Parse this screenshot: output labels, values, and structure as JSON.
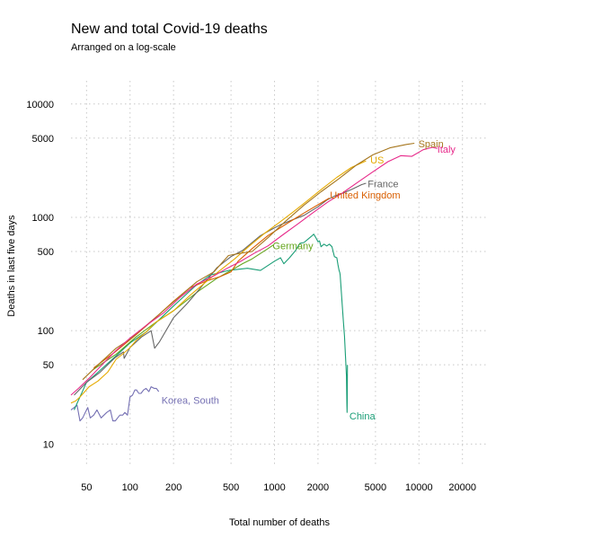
{
  "chart_data": {
    "type": "line",
    "title": "New and total Covid-19 deaths",
    "subtitle": "Arranged on a log-scale",
    "xlabel": "Total number of deaths",
    "ylabel": "Deaths in last five days",
    "x_scale": "log10",
    "y_scale": "log10",
    "xlim": [
      39,
      30000
    ],
    "ylim": [
      6.5,
      16000
    ],
    "x_ticks": [
      50,
      100,
      200,
      500,
      1000,
      2000,
      5000,
      10000,
      20000
    ],
    "x_tick_labels": [
      "50",
      "100",
      "200",
      "500",
      "1000",
      "2000",
      "5000",
      "10000",
      "20000"
    ],
    "y_ticks": [
      10,
      50,
      100,
      500,
      1000,
      5000,
      10000
    ],
    "y_tick_labels": [
      "10",
      "50",
      "100",
      "500",
      "1000",
      "5000",
      "10000"
    ],
    "grid": true,
    "legend": "none",
    "series": [
      {
        "name": "Korea, South",
        "color": "#7570b3",
        "label_at": [
          165,
          24.5
        ],
        "points": [
          [
            39,
            20
          ],
          [
            43,
            22
          ],
          [
            45,
            16
          ],
          [
            47,
            17
          ],
          [
            49,
            19
          ],
          [
            51,
            21
          ],
          [
            53,
            17
          ],
          [
            56,
            18
          ],
          [
            59,
            20
          ],
          [
            63,
            17
          ],
          [
            66,
            18
          ],
          [
            69,
            19
          ],
          [
            73,
            20
          ],
          [
            76,
            16
          ],
          [
            79,
            16
          ],
          [
            82,
            17
          ],
          [
            85,
            18
          ],
          [
            89,
            18
          ],
          [
            92,
            19
          ],
          [
            96,
            18
          ],
          [
            100,
            26
          ],
          [
            104,
            27
          ],
          [
            108,
            30
          ],
          [
            111,
            30
          ],
          [
            115,
            28
          ],
          [
            119,
            28
          ],
          [
            124,
            30
          ],
          [
            129,
            31
          ],
          [
            135,
            29
          ],
          [
            140,
            32
          ],
          [
            147,
            31
          ],
          [
            152,
            31
          ],
          [
            158,
            29
          ]
        ]
      },
      {
        "name": "China",
        "color": "#1b9e77",
        "label_at": [
          3300,
          17.7
        ],
        "points": [
          [
            41,
            20
          ],
          [
            50,
            35
          ],
          [
            60,
            43
          ],
          [
            80,
            60
          ],
          [
            100,
            78
          ],
          [
            130,
            98
          ],
          [
            200,
            165
          ],
          [
            280,
            245
          ],
          [
            360,
            310
          ],
          [
            480,
            340
          ],
          [
            650,
            355
          ],
          [
            800,
            340
          ],
          [
            1000,
            410
          ],
          [
            1100,
            440
          ],
          [
            1160,
            390
          ],
          [
            1270,
            440
          ],
          [
            1400,
            510
          ],
          [
            1500,
            590
          ],
          [
            1600,
            600
          ],
          [
            1700,
            640
          ],
          [
            1800,
            680
          ],
          [
            1870,
            710
          ],
          [
            1950,
            650
          ],
          [
            2000,
            610
          ],
          [
            2050,
            620
          ],
          [
            2100,
            550
          ],
          [
            2200,
            580
          ],
          [
            2300,
            560
          ],
          [
            2400,
            580
          ],
          [
            2500,
            550
          ],
          [
            2600,
            450
          ],
          [
            2700,
            440
          ],
          [
            2750,
            380
          ],
          [
            2800,
            340
          ],
          [
            2830,
            325
          ],
          [
            2850,
            310
          ],
          [
            2900,
            220
          ],
          [
            2950,
            160
          ],
          [
            3000,
            120
          ],
          [
            3050,
            90
          ],
          [
            3100,
            60
          ],
          [
            3150,
            40
          ],
          [
            3170,
            22
          ],
          [
            3180,
            19
          ],
          [
            3190,
            25
          ],
          [
            3200,
            50
          ]
        ]
      },
      {
        "name": "Germany",
        "color": "#66a61e",
        "label_at": [
          970,
          565
        ],
        "points": [
          [
            55,
            45
          ],
          [
            80,
            62
          ],
          [
            110,
            88
          ],
          [
            150,
            118
          ],
          [
            200,
            150
          ],
          [
            300,
            225
          ],
          [
            400,
            290
          ],
          [
            500,
            340
          ],
          [
            600,
            390
          ],
          [
            700,
            430
          ],
          [
            800,
            480
          ],
          [
            900,
            530
          ],
          [
            980,
            570
          ]
        ]
      },
      {
        "name": "France",
        "color": "#666666",
        "label_at": [
          4420,
          1980
        ],
        "points": [
          [
            41,
            27
          ],
          [
            50,
            35
          ],
          [
            62,
            43
          ],
          [
            79,
            58
          ],
          [
            90,
            65
          ],
          [
            91,
            57
          ],
          [
            100,
            71
          ],
          [
            120,
            88
          ],
          [
            140,
            100
          ],
          [
            148,
            70
          ],
          [
            160,
            80
          ],
          [
            200,
            130
          ],
          [
            250,
            175
          ],
          [
            300,
            230
          ],
          [
            400,
            360
          ],
          [
            500,
            450
          ],
          [
            600,
            510
          ],
          [
            700,
            600
          ],
          [
            800,
            690
          ],
          [
            950,
            780
          ],
          [
            1100,
            860
          ],
          [
            1300,
            940
          ],
          [
            1600,
            1040
          ],
          [
            2000,
            1240
          ],
          [
            2300,
            1420
          ],
          [
            2600,
            1540
          ],
          [
            3000,
            1640
          ],
          [
            3500,
            1790
          ],
          [
            4000,
            1940
          ],
          [
            4300,
            2000
          ]
        ]
      },
      {
        "name": "United Kingdom",
        "color": "#d95f02",
        "label_at": [
          2420,
          1580
        ],
        "points": [
          [
            56,
            47
          ],
          [
            80,
            66
          ],
          [
            110,
            92
          ],
          [
            150,
            130
          ],
          [
            200,
            182
          ],
          [
            260,
            240
          ],
          [
            340,
            275
          ],
          [
            420,
            300
          ],
          [
            500,
            330
          ],
          [
            560,
            410
          ],
          [
            700,
            530
          ],
          [
            900,
            690
          ],
          [
            1200,
            870
          ],
          [
            1600,
            1090
          ],
          [
            2000,
            1290
          ],
          [
            2400,
            1480
          ]
        ]
      },
      {
        "name": "US",
        "color": "#e6ab02",
        "label_at": [
          4600,
          3220
        ],
        "points": [
          [
            39,
            23
          ],
          [
            42,
            24
          ],
          [
            45,
            26
          ],
          [
            52,
            32
          ],
          [
            60,
            36
          ],
          [
            70,
            43
          ],
          [
            80,
            56
          ],
          [
            90,
            63
          ],
          [
            100,
            71
          ],
          [
            112,
            84
          ],
          [
            130,
            98
          ],
          [
            150,
            118
          ],
          [
            200,
            150
          ],
          [
            260,
            205
          ],
          [
            330,
            265
          ],
          [
            420,
            340
          ],
          [
            530,
            430
          ],
          [
            670,
            560
          ],
          [
            850,
            720
          ],
          [
            1080,
            900
          ],
          [
            1350,
            1120
          ],
          [
            1700,
            1410
          ],
          [
            2150,
            1800
          ],
          [
            2700,
            2250
          ],
          [
            3400,
            2750
          ],
          [
            4300,
            3150
          ]
        ]
      },
      {
        "name": "Spain",
        "color": "#a6761d",
        "label_at": [
          9900,
          4450
        ],
        "points": [
          [
            47,
            37
          ],
          [
            60,
            50
          ],
          [
            80,
            70
          ],
          [
            100,
            84
          ],
          [
            130,
            112
          ],
          [
            170,
            150
          ],
          [
            220,
            200
          ],
          [
            290,
            270
          ],
          [
            380,
            330
          ],
          [
            480,
            460
          ],
          [
            570,
            480
          ],
          [
            700,
            500
          ],
          [
            900,
            660
          ],
          [
            1200,
            930
          ],
          [
            1600,
            1280
          ],
          [
            2100,
            1680
          ],
          [
            2800,
            2200
          ],
          [
            3700,
            2900
          ],
          [
            4800,
            3560
          ],
          [
            6300,
            4100
          ],
          [
            8200,
            4400
          ],
          [
            9300,
            4500
          ]
        ]
      },
      {
        "name": "Italy",
        "color": "#e7298a",
        "label_at": [
          13400,
          4000
        ],
        "points": [
          [
            39,
            27
          ],
          [
            44,
            31
          ],
          [
            52,
            38
          ],
          [
            62,
            48
          ],
          [
            79,
            66
          ],
          [
            100,
            86
          ],
          [
            130,
            112
          ],
          [
            170,
            143
          ],
          [
            220,
            195
          ],
          [
            290,
            258
          ],
          [
            380,
            305
          ],
          [
            470,
            355
          ],
          [
            580,
            408
          ],
          [
            720,
            480
          ],
          [
            900,
            560
          ],
          [
            1140,
            700
          ],
          [
            1450,
            875
          ],
          [
            1850,
            1100
          ],
          [
            2350,
            1370
          ],
          [
            2950,
            1640
          ],
          [
            3800,
            2050
          ],
          [
            4800,
            2520
          ],
          [
            6100,
            3100
          ],
          [
            7500,
            3500
          ],
          [
            8900,
            3450
          ],
          [
            10700,
            3950
          ],
          [
            12400,
            4150
          ],
          [
            13400,
            4050
          ]
        ]
      }
    ]
  }
}
